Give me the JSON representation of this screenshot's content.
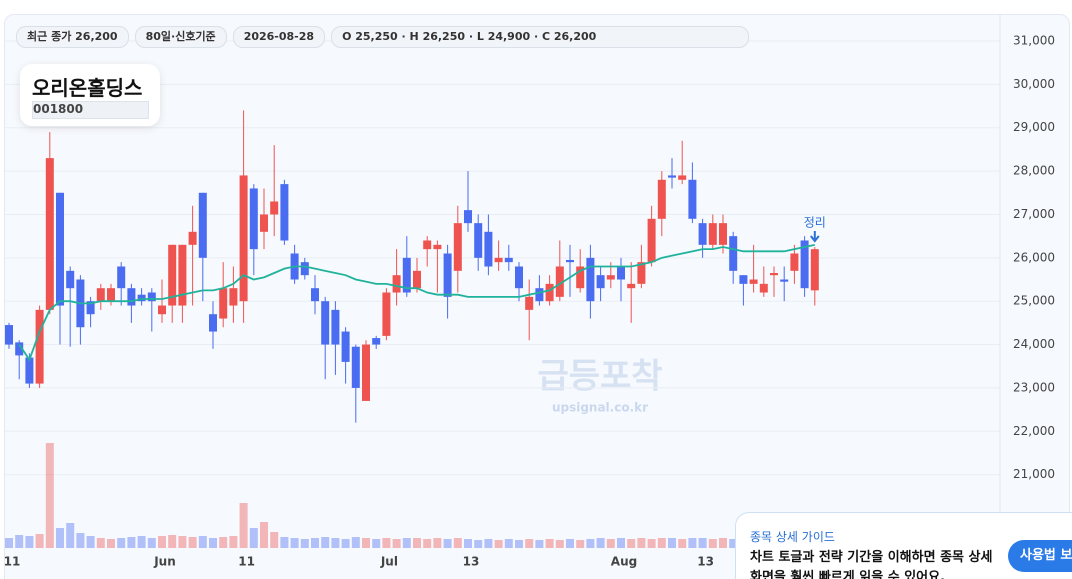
{
  "chart_data": {
    "type": "candlestick",
    "title": "오리온홀딩스",
    "code": "001800",
    "chips": [
      "최근 종가 26,200",
      "80일·신호기준",
      "2026-08-28",
      "O 25,250 · H 26,250 · L 24,900 · C 26,200"
    ],
    "watermark": "급등포착",
    "watermark_sub": "upsignal.co.kr",
    "annotation": "정리",
    "up_color": "#ef5350",
    "down_color": "#4a6cf0",
    "ma_color": "#1fb39b",
    "grid": true,
    "ylim": [
      20300,
      31600
    ],
    "yticks": [
      {
        "value": 21000,
        "label": "21,000"
      },
      {
        "value": 22000,
        "label": "22,000"
      },
      {
        "value": 23000,
        "label": "23,000"
      },
      {
        "value": 24000,
        "label": "24,000"
      },
      {
        "value": 25000,
        "label": "25,000"
      },
      {
        "value": 26000,
        "label": "26,000"
      },
      {
        "value": 27000,
        "label": "27,000"
      },
      {
        "value": 28000,
        "label": "28,000"
      },
      {
        "value": 29000,
        "label": "29,000"
      },
      {
        "value": 30000,
        "label": "30,000"
      },
      {
        "value": 31000,
        "label": "31,000"
      }
    ],
    "categories": [
      "11",
      null,
      null,
      null,
      null,
      null,
      null,
      null,
      null,
      null,
      null,
      null,
      null,
      null,
      null,
      "Jun",
      null,
      null,
      null,
      null,
      null,
      null,
      null,
      "11",
      null,
      null,
      null,
      null,
      null,
      null,
      null,
      null,
      null,
      null,
      null,
      null,
      null,
      "Jul",
      null,
      null,
      null,
      null,
      null,
      null,
      null,
      "13",
      null,
      null,
      null,
      null,
      null,
      null,
      null,
      null,
      null,
      null,
      null,
      null,
      null,
      null,
      "Aug",
      null,
      null,
      null,
      null,
      null,
      null,
      null,
      "13",
      null,
      null,
      null,
      null,
      null,
      null,
      null,
      null,
      null,
      null,
      null
    ],
    "ohlc": [
      [
        24450,
        24500,
        23900,
        24000
      ],
      [
        24050,
        24100,
        23200,
        23750
      ],
      [
        23700,
        23800,
        23000,
        23100
      ],
      [
        23100,
        24900,
        23000,
        24800
      ],
      [
        24800,
        28900,
        24700,
        28300
      ],
      [
        27500,
        27500,
        24000,
        24900
      ],
      [
        25700,
        25800,
        23950,
        25300
      ],
      [
        25500,
        25600,
        24000,
        24400
      ],
      [
        25000,
        25100,
        24400,
        24700
      ],
      [
        25000,
        25400,
        24800,
        25300
      ],
      [
        25000,
        25400,
        24900,
        25300
      ],
      [
        25800,
        25900,
        24900,
        25300
      ],
      [
        25300,
        25400,
        24500,
        24900
      ],
      [
        25150,
        25300,
        24900,
        25000
      ],
      [
        25200,
        25300,
        24300,
        25000
      ],
      [
        24700,
        25500,
        24500,
        24900
      ],
      [
        24900,
        26300,
        24500,
        26300
      ],
      [
        24900,
        26300,
        24500,
        26300
      ],
      [
        26300,
        27200,
        24900,
        26600
      ],
      [
        27500,
        27500,
        25000,
        26000
      ],
      [
        24700,
        25000,
        23900,
        24300
      ],
      [
        24600,
        25900,
        24400,
        25300
      ],
      [
        24900,
        25800,
        24500,
        25300
      ],
      [
        25000,
        29400,
        24500,
        27900
      ],
      [
        27600,
        27700,
        25600,
        26200
      ],
      [
        26600,
        27600,
        26200,
        27000
      ],
      [
        27000,
        28600,
        26500,
        27300
      ],
      [
        27700,
        27800,
        26300,
        26400
      ],
      [
        26100,
        26300,
        25400,
        25500
      ],
      [
        25900,
        26000,
        25500,
        25600
      ],
      [
        25300,
        25600,
        24700,
        25000
      ],
      [
        25000,
        25100,
        23200,
        24000
      ],
      [
        24800,
        25000,
        23300,
        24000
      ],
      [
        24300,
        24400,
        23100,
        23600
      ],
      [
        23950,
        24000,
        22200,
        23000
      ],
      [
        22700,
        24100,
        22700,
        24000
      ],
      [
        24150,
        24200,
        23900,
        24000
      ],
      [
        24200,
        25300,
        24100,
        25200
      ],
      [
        25200,
        26200,
        24900,
        25600
      ],
      [
        26000,
        26500,
        25100,
        25200
      ],
      [
        25300,
        26000,
        25200,
        25700
      ],
      [
        26200,
        26500,
        25800,
        26400
      ],
      [
        26200,
        26400,
        25200,
        26300
      ],
      [
        26100,
        26300,
        24600,
        25100
      ],
      [
        25700,
        27200,
        25200,
        26800
      ],
      [
        27100,
        28000,
        26600,
        26800
      ],
      [
        26800,
        27000,
        25700,
        26000
      ],
      [
        26600,
        27000,
        25600,
        25800
      ],
      [
        25900,
        26400,
        25700,
        26000
      ],
      [
        26000,
        26300,
        25700,
        25900
      ],
      [
        25800,
        25900,
        25000,
        25300
      ],
      [
        24800,
        25500,
        24100,
        25100
      ],
      [
        25300,
        25600,
        24900,
        25000
      ],
      [
        25000,
        25600,
        24900,
        25400
      ],
      [
        25100,
        26400,
        25000,
        25800
      ],
      [
        25950,
        26300,
        25100,
        25900
      ],
      [
        25300,
        26200,
        25200,
        25800
      ],
      [
        26000,
        26300,
        24600,
        25000
      ],
      [
        25600,
        25800,
        25000,
        25300
      ],
      [
        25500,
        25900,
        25300,
        25600
      ],
      [
        25800,
        26000,
        25000,
        25500
      ],
      [
        25300,
        25900,
        24500,
        25400
      ],
      [
        25400,
        26300,
        25300,
        25900
      ],
      [
        25900,
        27200,
        25800,
        26900
      ],
      [
        26900,
        28000,
        26500,
        27800
      ],
      [
        27900,
        28300,
        27600,
        27850
      ],
      [
        27800,
        28700,
        27700,
        27900
      ],
      [
        27800,
        28200,
        26800,
        26900
      ],
      [
        26800,
        26900,
        26000,
        26300
      ],
      [
        26300,
        27000,
        26200,
        26800
      ],
      [
        26300,
        27000,
        26100,
        26800
      ],
      [
        26500,
        26600,
        25400,
        25700
      ],
      [
        25600,
        25600,
        24900,
        25400
      ],
      [
        25400,
        26300,
        25200,
        25500
      ],
      [
        25200,
        25800,
        25100,
        25400
      ],
      [
        25600,
        25800,
        25100,
        25650
      ],
      [
        25500,
        25800,
        25000,
        25450
      ],
      [
        25700,
        26300,
        25400,
        26100
      ],
      [
        26400,
        26500,
        25100,
        25300
      ],
      [
        25250,
        26250,
        24900,
        26200
      ]
    ],
    "ma": [
      null,
      24000,
      23650,
      24300,
      24800,
      25000,
      25000,
      24950,
      24950,
      25000,
      25000,
      25000,
      25000,
      25050,
      25050,
      25050,
      25100,
      25150,
      25200,
      25250,
      25250,
      25300,
      25400,
      25600,
      25500,
      25550,
      25650,
      25750,
      25800,
      25800,
      25750,
      25700,
      25650,
      25600,
      25500,
      25450,
      25400,
      25400,
      25350,
      25300,
      25300,
      25200,
      25150,
      25150,
      25150,
      25100,
      25100,
      25100,
      25100,
      25100,
      25100,
      25150,
      25200,
      25250,
      25400,
      25550,
      25700,
      25800,
      25800,
      25800,
      25800,
      25800,
      25850,
      25900,
      26000,
      26050,
      26100,
      26150,
      26200,
      26200,
      26250,
      26200,
      26150,
      26150,
      26150,
      26150,
      26150,
      26200,
      26250,
      26300
    ],
    "volume": [
      100,
      130,
      120,
      140,
      1050,
      200,
      250,
      150,
      120,
      100,
      90,
      100,
      110,
      120,
      100,
      120,
      130,
      120,
      110,
      120,
      100,
      110,
      120,
      450,
      200,
      260,
      160,
      110,
      100,
      90,
      100,
      110,
      100,
      90,
      110,
      100,
      90,
      100,
      90,
      100,
      100,
      90,
      100,
      90,
      100,
      90,
      80,
      90,
      80,
      90,
      80,
      90,
      80,
      90,
      80,
      90,
      80,
      90,
      100,
      90,
      100,
      90,
      100,
      90,
      100,
      100,
      90,
      100,
      100,
      90,
      100,
      90,
      80,
      90,
      80,
      90,
      100,
      90,
      100,
      90
    ]
  },
  "guide": {
    "title": "종목 상세 가이드",
    "lines": [
      "차트 토글과 전략 기간을 이해하면 종목 상세",
      "화면을 훨씬 빠르게 읽을 수 있어요."
    ],
    "button": "사용법 보기"
  }
}
